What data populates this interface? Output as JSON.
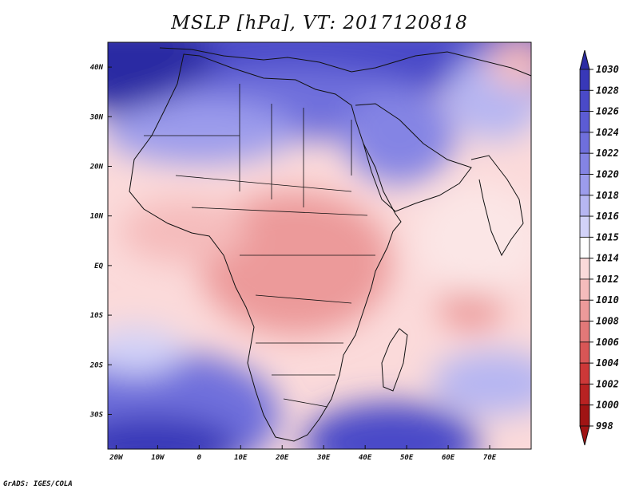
{
  "title": "MSLP [hPa], VT: 2017120818",
  "credit": "GrADS: IGES/COLA",
  "map": {
    "lon_range": [
      -22,
      80
    ],
    "lat_range": [
      -37,
      45
    ],
    "lon_ticks": [
      {
        "lon": -20,
        "label": "20W"
      },
      {
        "lon": -10,
        "label": "10W"
      },
      {
        "lon": 0,
        "label": "0"
      },
      {
        "lon": 10,
        "label": "10E"
      },
      {
        "lon": 20,
        "label": "20E"
      },
      {
        "lon": 30,
        "label": "30E"
      },
      {
        "lon": 40,
        "label": "40E"
      },
      {
        "lon": 50,
        "label": "50E"
      },
      {
        "lon": 60,
        "label": "60E"
      },
      {
        "lon": 70,
        "label": "70E"
      }
    ],
    "lat_ticks": [
      {
        "lat": 40,
        "label": "40N"
      },
      {
        "lat": 30,
        "label": "30N"
      },
      {
        "lat": 20,
        "label": "20N"
      },
      {
        "lat": 10,
        "label": "10N"
      },
      {
        "lat": 0,
        "label": "EQ"
      },
      {
        "lat": -10,
        "label": "10S"
      },
      {
        "lat": -20,
        "label": "20S"
      },
      {
        "lat": -30,
        "label": "30S"
      }
    ]
  },
  "colorbar": {
    "levels": [
      "1030",
      "1028",
      "1026",
      "1024",
      "1022",
      "1020",
      "1018",
      "1016",
      "1015",
      "1014",
      "1012",
      "1010",
      "1008",
      "1006",
      "1004",
      "1002",
      "1000",
      "998"
    ],
    "colors": [
      "#2b2ba3",
      "#3838b8",
      "#4a4ac8",
      "#5c5cd4",
      "#6f6fdc",
      "#8484e4",
      "#9c9cec",
      "#b6b6f2",
      "#d2d2f8",
      "#ffffff",
      "#fbdada",
      "#f5bcbc",
      "#ec9a9a",
      "#e27878",
      "#d85656",
      "#cc3838",
      "#b82222",
      "#a01414"
    ]
  }
}
